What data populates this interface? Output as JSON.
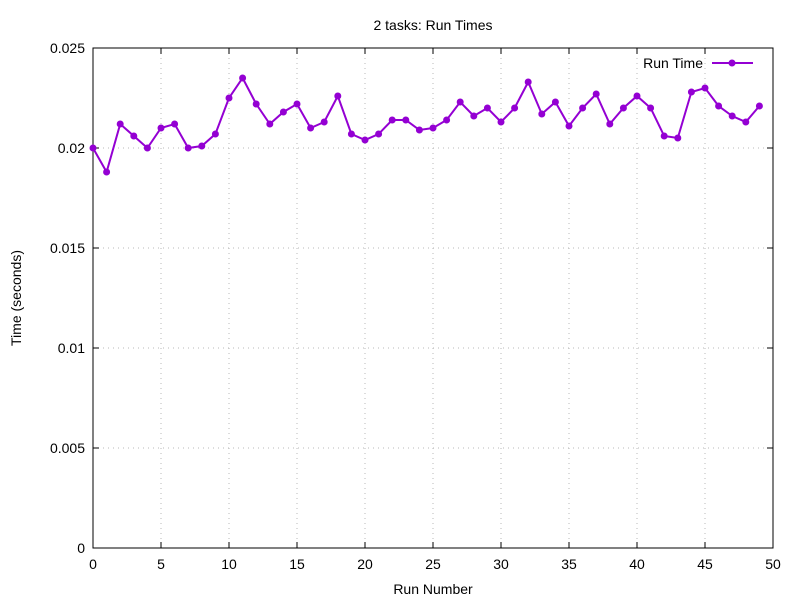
{
  "chart_data": {
    "type": "line",
    "title": "2 tasks: Run Times",
    "xlabel": "Run Number",
    "ylabel": "Time (seconds)",
    "xlim": [
      0,
      50
    ],
    "ylim": [
      0,
      0.025
    ],
    "xticks": [
      "0",
      "5",
      "10",
      "15",
      "20",
      "25",
      "30",
      "35",
      "40",
      "45",
      "50"
    ],
    "yticks": [
      "0",
      "0.005",
      "0.01",
      "0.015",
      "0.02",
      "0.025"
    ],
    "grid": true,
    "legend_position": "top-right",
    "series": [
      {
        "name": "Run Time",
        "color": "#9400d3",
        "x": [
          0,
          1,
          2,
          3,
          4,
          5,
          6,
          7,
          8,
          9,
          10,
          11,
          12,
          13,
          14,
          15,
          16,
          17,
          18,
          19,
          20,
          21,
          22,
          23,
          24,
          25,
          26,
          27,
          28,
          29,
          30,
          31,
          32,
          33,
          34,
          35,
          36,
          37,
          38,
          39,
          40,
          41,
          42,
          43,
          44,
          45,
          46,
          47,
          48,
          49
        ],
        "values": [
          0.02,
          0.0188,
          0.0212,
          0.0206,
          0.02,
          0.021,
          0.0212,
          0.02,
          0.0201,
          0.0207,
          0.0225,
          0.0235,
          0.0222,
          0.0212,
          0.0218,
          0.0222,
          0.021,
          0.0213,
          0.0226,
          0.0207,
          0.0204,
          0.0207,
          0.0214,
          0.0214,
          0.0209,
          0.021,
          0.0214,
          0.0223,
          0.0216,
          0.022,
          0.0213,
          0.022,
          0.0233,
          0.0217,
          0.0223,
          0.0211,
          0.022,
          0.0227,
          0.0212,
          0.022,
          0.0226,
          0.022,
          0.0206,
          0.0205,
          0.0228,
          0.023,
          0.0221,
          0.0216,
          0.0213,
          0.0221
        ]
      }
    ]
  }
}
